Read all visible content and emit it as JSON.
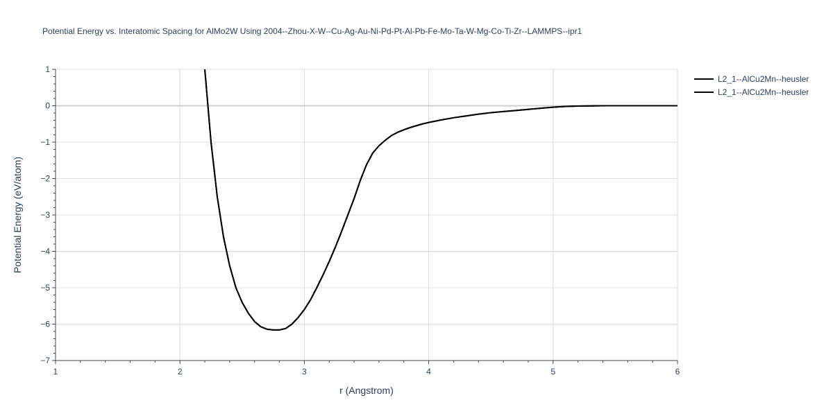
{
  "chart_data": {
    "type": "line",
    "title": "Potential Energy vs. Interatomic Spacing for AlMo2W Using 2004--Zhou-X-W--Cu-Ag-Au-Ni-Pd-Pt-Al-Pb-Fe-Mo-Ta-W-Mg-Co-Ti-Zr--LAMMPS--ipr1",
    "xlabel": "r (Angstrom)",
    "ylabel": "Potential Energy (eV/atom)",
    "xlim": [
      1,
      6
    ],
    "ylim": [
      -7,
      1
    ],
    "x_ticks": [
      1,
      2,
      3,
      4,
      5,
      6
    ],
    "y_ticks": [
      1,
      0,
      -1,
      -2,
      -3,
      -4,
      -5,
      -6,
      -7
    ],
    "x_tick_labels": [
      "1",
      "2",
      "3",
      "4",
      "5",
      "6"
    ],
    "y_tick_labels": [
      "1",
      "0",
      "−1",
      "−2",
      "−3",
      "−4",
      "−5",
      "−6",
      "−7"
    ],
    "grid": true,
    "legend_position": "top-right",
    "series": [
      {
        "name": "L2_1--AlCu2Mn--heusler",
        "color": "#000000",
        "x": [
          2.2,
          2.25,
          2.3,
          2.35,
          2.4,
          2.45,
          2.5,
          2.55,
          2.6,
          2.65,
          2.7,
          2.75,
          2.8,
          2.85,
          2.9,
          2.95,
          3.0,
          3.05,
          3.1,
          3.15,
          3.2,
          3.25,
          3.3,
          3.35,
          3.4,
          3.45,
          3.5,
          3.55,
          3.6,
          3.65,
          3.7,
          3.75,
          3.8,
          3.85,
          3.9,
          3.95,
          4.0,
          4.1,
          4.2,
          4.3,
          4.4,
          4.5,
          4.6,
          4.7,
          4.8,
          4.9,
          5.0,
          5.1,
          5.2,
          5.3,
          5.4,
          5.5,
          5.6,
          5.7,
          5.8,
          5.9,
          6.0
        ],
        "y": [
          1.0,
          -1.0,
          -2.5,
          -3.6,
          -4.4,
          -5.0,
          -5.4,
          -5.7,
          -5.93,
          -6.07,
          -6.14,
          -6.16,
          -6.16,
          -6.12,
          -6.0,
          -5.82,
          -5.6,
          -5.33,
          -5.0,
          -4.65,
          -4.28,
          -3.88,
          -3.45,
          -3.0,
          -2.55,
          -2.05,
          -1.62,
          -1.3,
          -1.1,
          -0.95,
          -0.82,
          -0.73,
          -0.66,
          -0.6,
          -0.55,
          -0.5,
          -0.46,
          -0.39,
          -0.33,
          -0.28,
          -0.23,
          -0.19,
          -0.16,
          -0.13,
          -0.1,
          -0.07,
          -0.04,
          -0.02,
          -0.01,
          -0.005,
          0.0,
          0.0,
          0.0,
          0.0,
          0.0,
          0.0,
          0.0
        ]
      },
      {
        "name": "L2_1--AlCu2Mn--heusler",
        "color": "#000000",
        "x": [
          2.2,
          2.25,
          2.3,
          2.35,
          2.4,
          2.45,
          2.5,
          2.55,
          2.6,
          2.65,
          2.7,
          2.75,
          2.8,
          2.85,
          2.9,
          2.95,
          3.0,
          3.05,
          3.1,
          3.15,
          3.2,
          3.25,
          3.3,
          3.35,
          3.4,
          3.45,
          3.5,
          3.55,
          3.6,
          3.65,
          3.7,
          3.75,
          3.8,
          3.85,
          3.9,
          3.95,
          4.0,
          4.1,
          4.2,
          4.3,
          4.4,
          4.5,
          4.6,
          4.7,
          4.8,
          4.9,
          5.0,
          5.1,
          5.2,
          5.3,
          5.4,
          5.5,
          5.6,
          5.7,
          5.8,
          5.9,
          6.0
        ],
        "y": [
          1.0,
          -1.0,
          -2.5,
          -3.6,
          -4.4,
          -5.0,
          -5.4,
          -5.7,
          -5.93,
          -6.07,
          -6.14,
          -6.16,
          -6.16,
          -6.12,
          -6.0,
          -5.82,
          -5.6,
          -5.33,
          -5.0,
          -4.65,
          -4.28,
          -3.88,
          -3.45,
          -3.0,
          -2.55,
          -2.05,
          -1.62,
          -1.3,
          -1.1,
          -0.95,
          -0.82,
          -0.73,
          -0.66,
          -0.6,
          -0.55,
          -0.5,
          -0.46,
          -0.39,
          -0.33,
          -0.28,
          -0.23,
          -0.19,
          -0.16,
          -0.13,
          -0.1,
          -0.07,
          -0.04,
          -0.02,
          -0.01,
          -0.005,
          0.0,
          0.0,
          0.0,
          0.0,
          0.0,
          0.0,
          0.0
        ]
      }
    ]
  }
}
